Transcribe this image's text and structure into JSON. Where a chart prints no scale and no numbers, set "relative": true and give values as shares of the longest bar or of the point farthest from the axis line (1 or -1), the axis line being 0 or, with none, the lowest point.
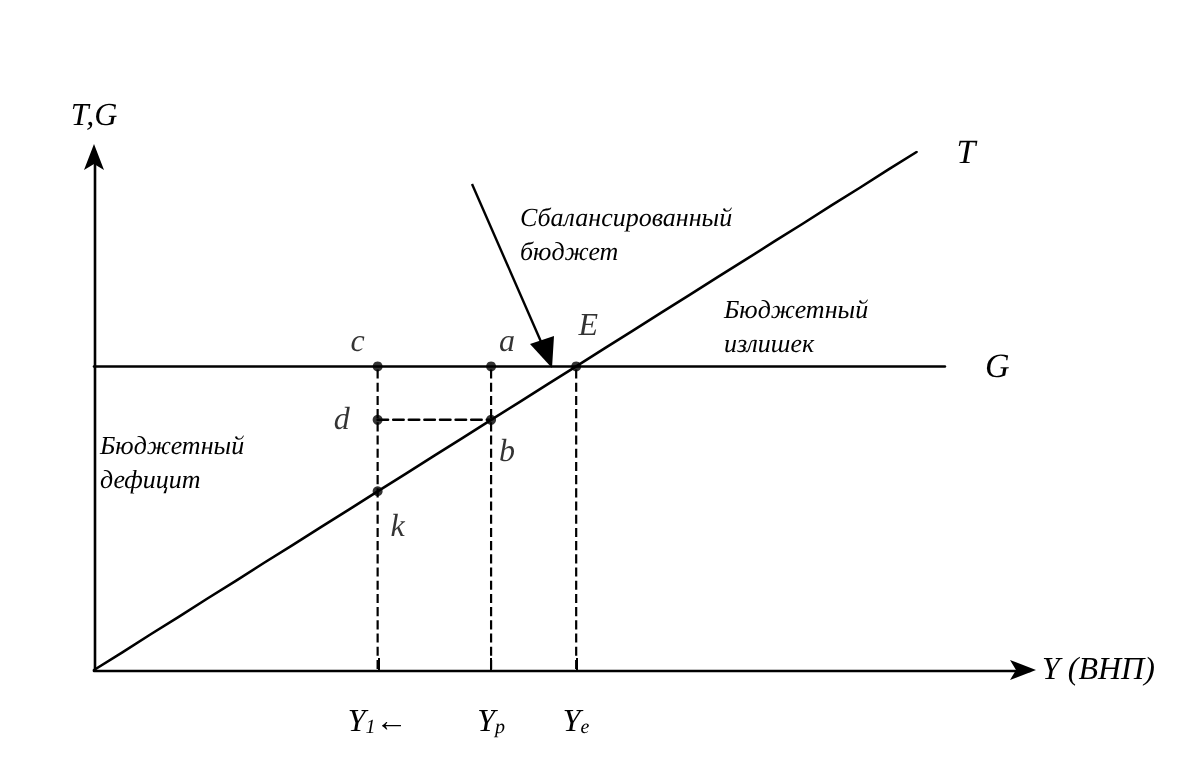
{
  "chart_data": {
    "type": "line",
    "relative": true,
    "ylabel": "T,G",
    "xlabel": "Y (ВНП)",
    "categories": [
      null,
      null,
      null,
      null,
      null,
      null,
      null,
      null,
      null,
      null,
      "Y$_{1}$←",
      null,
      null,
      null,
      "Y$_{p}$",
      null,
      null,
      "Y$_{e}$",
      null,
      null,
      null,
      null,
      null,
      null,
      null,
      null,
      null,
      null,
      null,
      null,
      null,
      null,
      null,
      null
    ],
    "series": [
      {
        "name": "T",
        "color": "#000000",
        "values": [
          0,
          0.034,
          0.069,
          0.103,
          0.138,
          0.172,
          0.207,
          0.241,
          0.276,
          0.31,
          0.345,
          0.379,
          0.414,
          0.448,
          0.483,
          0.517,
          0.552,
          0.586,
          0.621,
          0.655,
          0.69,
          0.724,
          0.759,
          0.793,
          0.828,
          0.862,
          0.897,
          0.931,
          0.966,
          1,
          null,
          null,
          null,
          null
        ]
      },
      {
        "name": "G",
        "color": "#000000",
        "values": [
          0.586,
          0.586,
          0.586,
          0.586,
          0.586,
          0.586,
          0.586,
          0.586,
          0.586,
          0.586,
          0.586,
          0.586,
          0.586,
          0.586,
          0.586,
          0.586,
          0.586,
          0.586,
          0.586,
          0.586,
          0.586,
          0.586,
          0.586,
          0.586,
          0.586,
          0.586,
          0.586,
          0.586,
          0.586,
          0.586,
          0.586,
          null,
          null,
          null
        ]
      },
      {
        "type": "bar",
        "color": "#000000",
        "line_style": "dashed",
        "values": [
          null,
          null,
          null,
          null,
          null,
          null,
          null,
          null,
          null,
          null,
          0.586,
          null,
          null,
          null,
          0.586,
          null,
          null,
          0.586,
          null,
          null,
          null,
          null,
          null,
          null,
          null,
          null,
          null,
          null,
          null,
          null,
          null,
          null,
          null,
          null
        ]
      },
      {
        "color": "#000000",
        "line_style": "dashed",
        "values": [
          null,
          null,
          null,
          null,
          null,
          null,
          null,
          null,
          null,
          null,
          0.483,
          0.483,
          0.483,
          0.483,
          0.483,
          null,
          null,
          null,
          null,
          null,
          null,
          null,
          null,
          null,
          null,
          null,
          null,
          null,
          null,
          null,
          null,
          null,
          null,
          null
        ]
      },
      {
        "type": "scatter",
        "color": "#000000",
        "marker": "circle",
        "x": [
          "Y$_{1}$←",
          "Y$_{p}$",
          "Y$_{e}$",
          "Y$_{1}$←",
          "Y$_{p}$",
          "Y$_{1}$←"
        ],
        "values": [
          0.586,
          0.586,
          0.586,
          0.483,
          0.483,
          0.345
        ]
      }
    ],
    "annotations": [
      {
        "text": "c",
        "x": "Y$_{1}$←",
        "y": 0.586
      },
      {
        "text": "a",
        "x": "Y$_{p}$",
        "y": 0.586
      },
      {
        "text": "E",
        "x": "Y$_{e}$",
        "y": 0.586
      },
      {
        "text": "d",
        "x": "Y$_{1}$←",
        "y": 0.483
      },
      {
        "text": "b",
        "x": "Y$_{p}$",
        "y": 0.483
      },
      {
        "text": "k",
        "x": "Y$_{1}$←",
        "y": 0.345
      },
      "Сбалансированный\nбюджет",
      "Бюджетный\nизлишек",
      "Бюджетный\nдефицит"
    ]
  }
}
